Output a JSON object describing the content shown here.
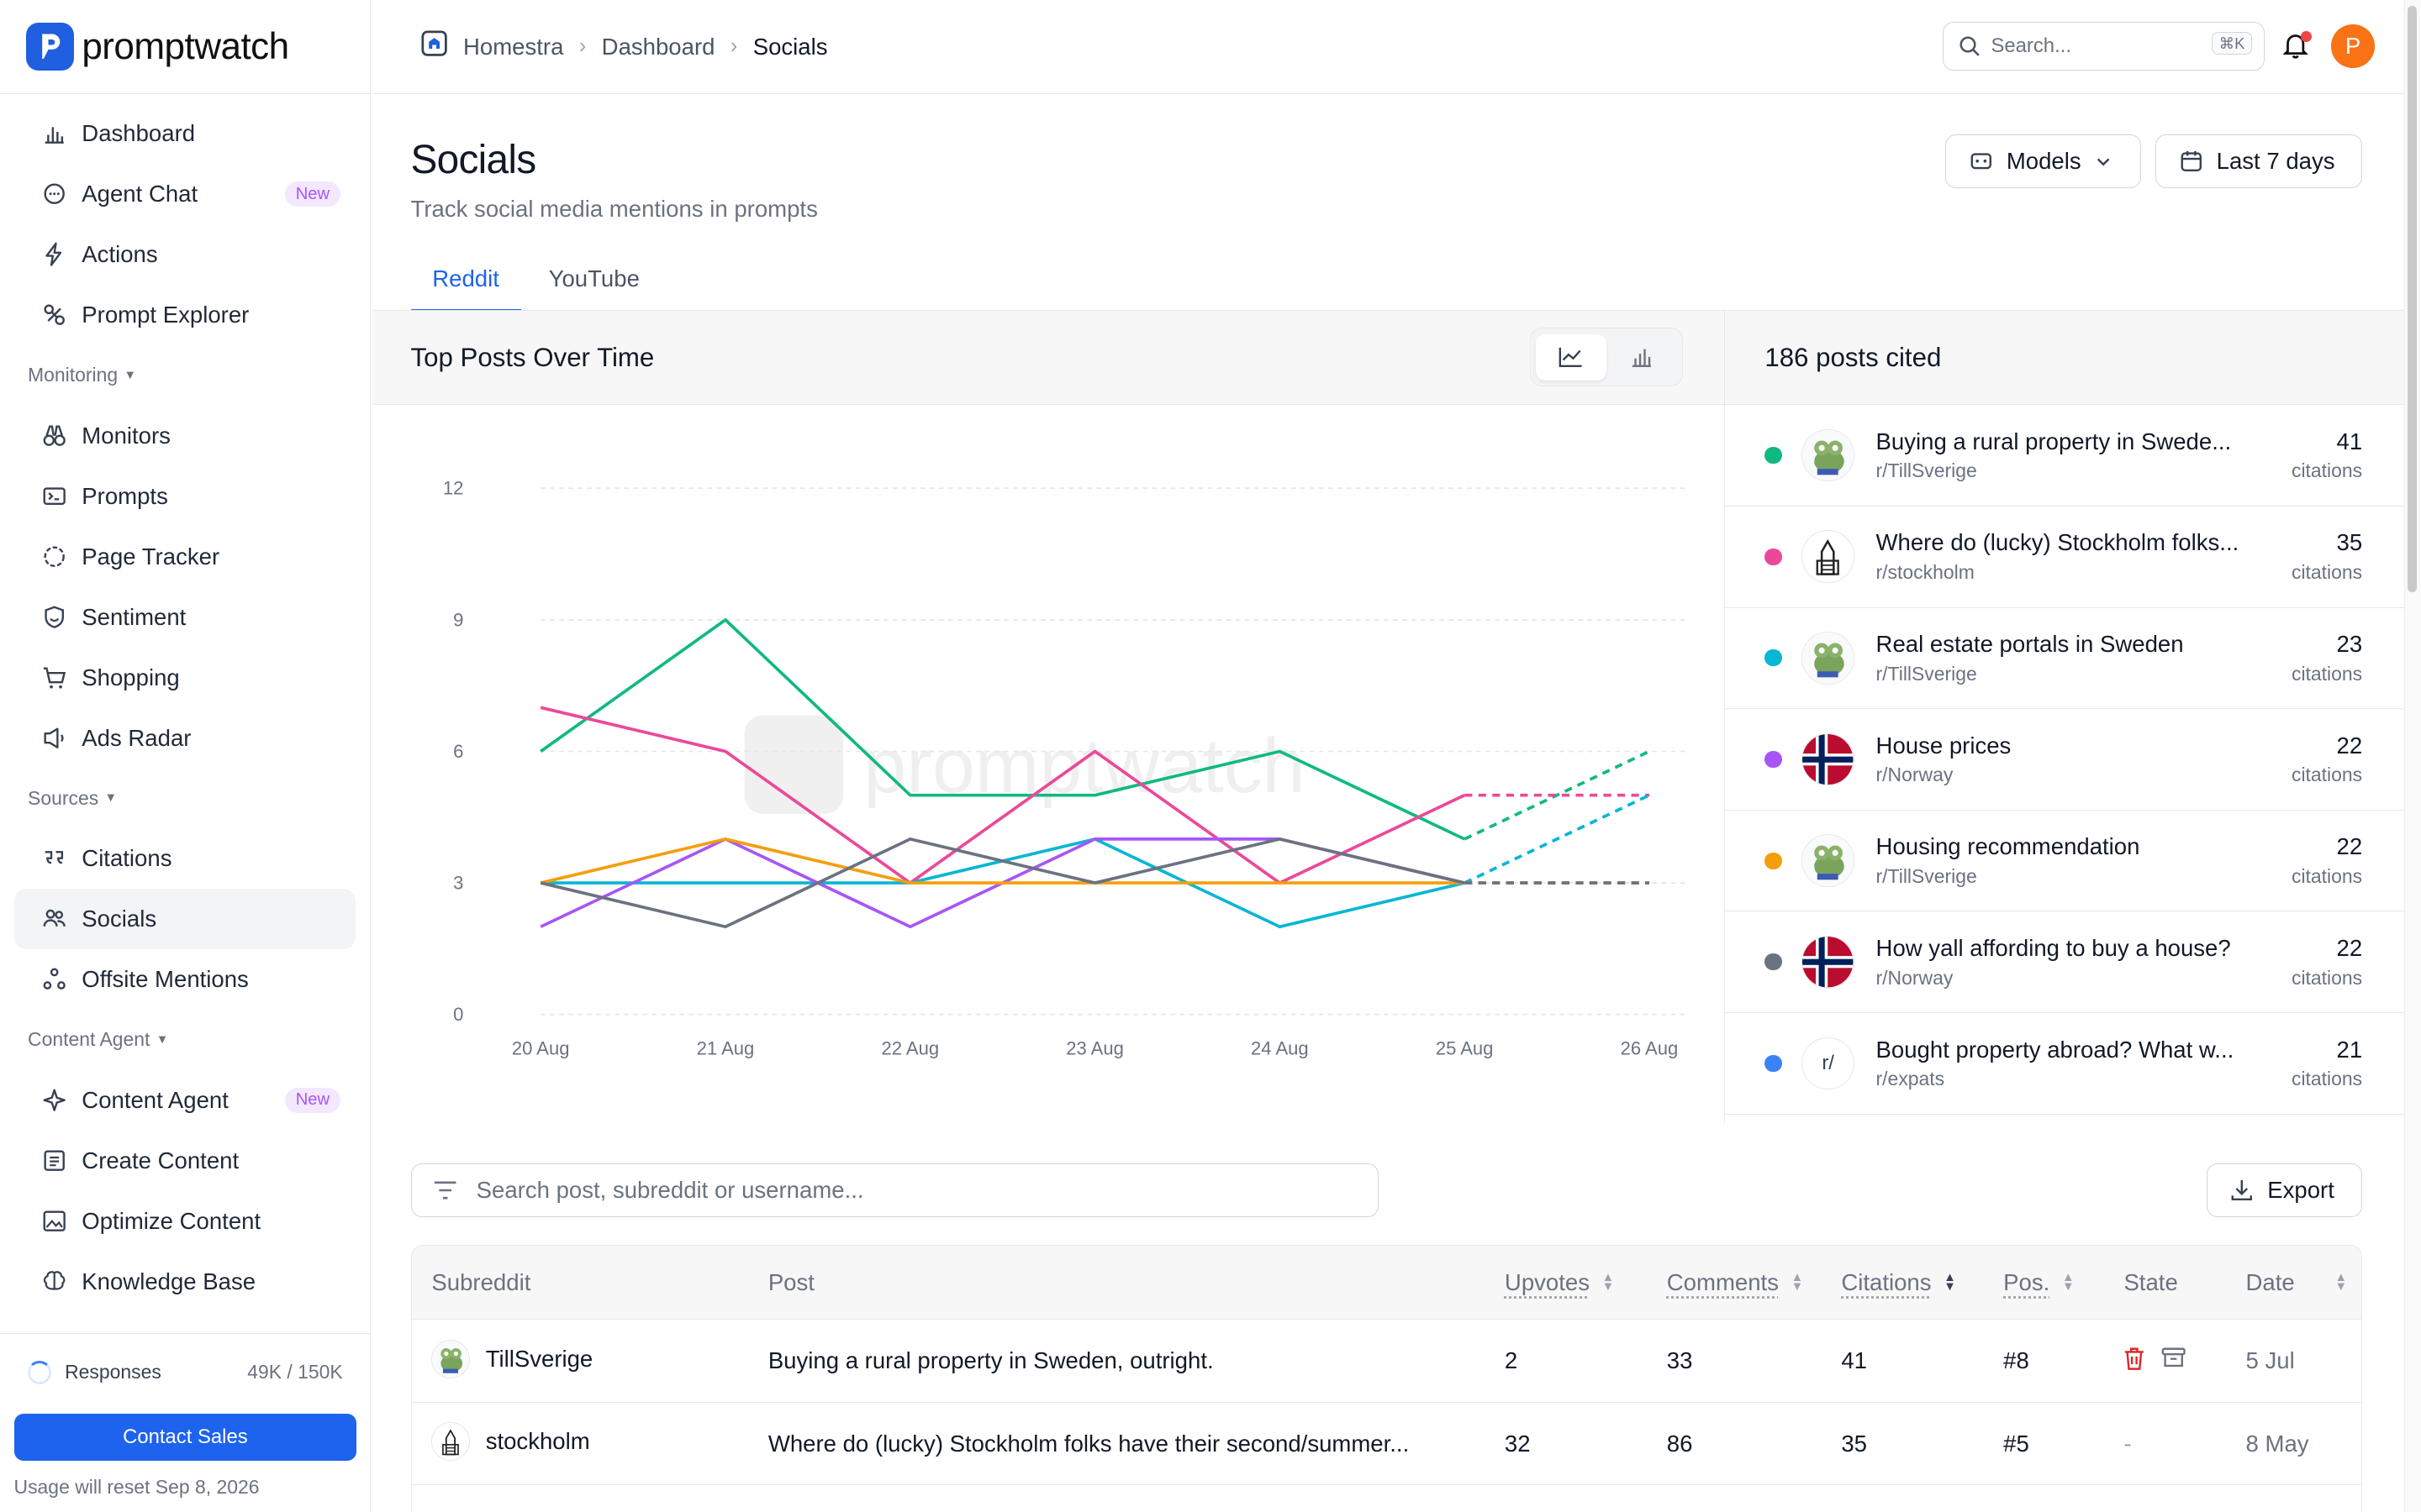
{
  "app": {
    "name": "promptwatch"
  },
  "sidebar": {
    "items_top": [
      {
        "label": "Dashboard",
        "icon": "bar-chart-icon"
      },
      {
        "label": "Agent Chat",
        "icon": "chat-icon",
        "badge": "New"
      },
      {
        "label": "Actions",
        "icon": "bolt-icon"
      },
      {
        "label": "Prompt Explorer",
        "icon": "explorer-icon"
      }
    ],
    "section_monitoring": "Monitoring",
    "items_monitoring": [
      {
        "label": "Monitors",
        "icon": "binoculars-icon"
      },
      {
        "label": "Prompts",
        "icon": "prompts-icon"
      },
      {
        "label": "Page Tracker",
        "icon": "page-tracker-icon"
      },
      {
        "label": "Sentiment",
        "icon": "sentiment-icon"
      },
      {
        "label": "Shopping",
        "icon": "cart-icon"
      },
      {
        "label": "Ads Radar",
        "icon": "ads-icon"
      }
    ],
    "section_sources": "Sources",
    "items_sources": [
      {
        "label": "Citations",
        "icon": "quote-icon"
      },
      {
        "label": "Socials",
        "icon": "users-icon"
      },
      {
        "label": "Offsite Mentions",
        "icon": "share-icon"
      }
    ],
    "section_content": "Content Agent",
    "items_content": [
      {
        "label": "Content Agent",
        "icon": "sparkle-icon",
        "badge": "New"
      },
      {
        "label": "Create Content",
        "icon": "document-icon"
      },
      {
        "label": "Optimize Content",
        "icon": "image-icon"
      },
      {
        "label": "Knowledge Base",
        "icon": "brain-icon"
      }
    ],
    "responses_label": "Responses",
    "responses_value": "49K / 150K",
    "contact_label": "Contact Sales",
    "reset_text": "Usage will reset Sep 8, 2026"
  },
  "header": {
    "breadcrumb": [
      "Homestra",
      "Dashboard",
      "Socials"
    ],
    "search_placeholder": "Search...",
    "search_shortcut": "⌘K",
    "avatar_initial": "P"
  },
  "page": {
    "title": "Socials",
    "subtitle": "Track social media mentions in prompts",
    "models_label": "Models",
    "range_label": "Last 7 days",
    "tabs": [
      "Reddit",
      "YouTube"
    ],
    "active_tab": "Reddit"
  },
  "chart_card": {
    "title": "Top Posts Over Time"
  },
  "chart_data": {
    "type": "line",
    "x": [
      "20 Aug",
      "21 Aug",
      "22 Aug",
      "23 Aug",
      "24 Aug",
      "25 Aug",
      "26 Aug"
    ],
    "ylim": [
      0,
      12
    ],
    "yticks": [
      0,
      3,
      6,
      9,
      12
    ],
    "grid": true,
    "dashed_segment_from_index": 5,
    "series": [
      {
        "color": "#10b981",
        "values": [
          6,
          9,
          5,
          5,
          6,
          4,
          6
        ]
      },
      {
        "color": "#ec4899",
        "values": [
          7,
          6,
          3,
          6,
          3,
          5,
          5
        ]
      },
      {
        "color": "#06b6d4",
        "values": [
          3,
          3,
          3,
          4,
          2,
          3,
          5
        ]
      },
      {
        "color": "#a855f7",
        "values": [
          2,
          4,
          2,
          4,
          4,
          3,
          3
        ]
      },
      {
        "color": "#f59e0b",
        "values": [
          3,
          4,
          3,
          3,
          3,
          3,
          3
        ]
      },
      {
        "color": "#6b7280",
        "values": [
          3,
          2,
          4,
          3,
          4,
          3,
          3
        ]
      }
    ]
  },
  "posts_card": {
    "title": "186 posts cited",
    "citations_label": "citations",
    "posts": [
      {
        "title": "Buying a rural property in Swede...",
        "subreddit": "r/TillSverige",
        "citations": "41",
        "color": "#10b981",
        "avatar": "frog"
      },
      {
        "title": "Where do (lucky) Stockholm folks...",
        "subreddit": "r/stockholm",
        "citations": "35",
        "color": "#ec4899",
        "avatar": "tower"
      },
      {
        "title": "Real estate portals in Sweden",
        "subreddit": "r/TillSverige",
        "citations": "23",
        "color": "#06b6d4",
        "avatar": "frog"
      },
      {
        "title": "House prices",
        "subreddit": "r/Norway",
        "citations": "22",
        "color": "#a855f7",
        "avatar": "flag"
      },
      {
        "title": "Housing recommendation",
        "subreddit": "r/TillSverige",
        "citations": "22",
        "color": "#f59e0b",
        "avatar": "frog"
      },
      {
        "title": "How yall affording to buy a house?",
        "subreddit": "r/Norway",
        "citations": "22",
        "color": "#6b7280",
        "avatar": "flag"
      },
      {
        "title": "Bought property abroad? What w...",
        "subreddit": "r/expats",
        "citations": "21",
        "color": "#3b82f6",
        "avatar": "r/"
      }
    ]
  },
  "table": {
    "filter_placeholder": "Search post, subreddit or username...",
    "export_label": "Export",
    "columns": [
      "Subreddit",
      "Post",
      "Upvotes",
      "Comments",
      "Citations",
      "Pos.",
      "State",
      "Date"
    ],
    "rows": [
      {
        "subreddit": "TillSverige",
        "post": "Buying a rural property in Sweden, outright.",
        "upvotes": "2",
        "comments": "33",
        "citations": "41",
        "pos": "#8",
        "state": "icons",
        "date": "5 Jul",
        "avatar": "frog"
      },
      {
        "subreddit": "stockholm",
        "post": "Where do (lucky) Stockholm folks have their second/summer...",
        "upvotes": "32",
        "comments": "86",
        "citations": "35",
        "pos": "#5",
        "state": "-",
        "date": "8 May",
        "avatar": "tower"
      }
    ]
  },
  "watermark": "promptwatch"
}
